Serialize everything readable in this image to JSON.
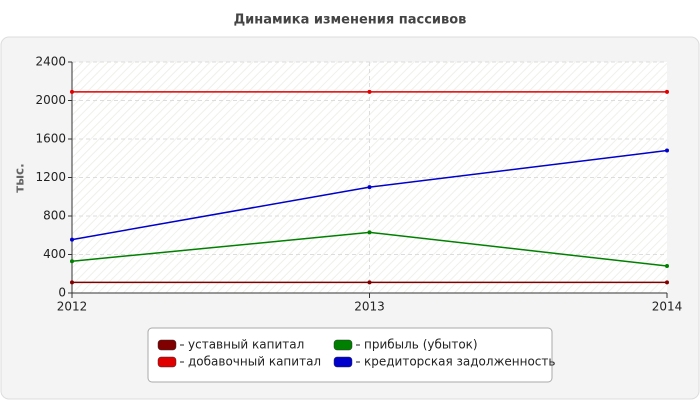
{
  "chart_data": {
    "type": "line",
    "title": "Динамика изменения пассивов",
    "y_label": "тыс.",
    "categories": [
      "2012",
      "2013",
      "2014"
    ],
    "series": [
      {
        "name": "уставный капитал",
        "color": "#800000",
        "values": [
          110,
          110,
          110
        ]
      },
      {
        "name": "добавочный капитал",
        "color": "#e00000",
        "values": [
          2090,
          2090,
          2090
        ]
      },
      {
        "name": "прибыль (убыток)",
        "color": "#008000",
        "values": [
          330,
          630,
          280
        ]
      },
      {
        "name": "кредиторская задолженность",
        "color": "#0000cc",
        "values": [
          555,
          1100,
          1480
        ]
      }
    ],
    "ylim": [
      0,
      2400
    ],
    "yticks": [
      0,
      400,
      800,
      1200,
      1600,
      2000,
      2400
    ],
    "grid": true
  }
}
